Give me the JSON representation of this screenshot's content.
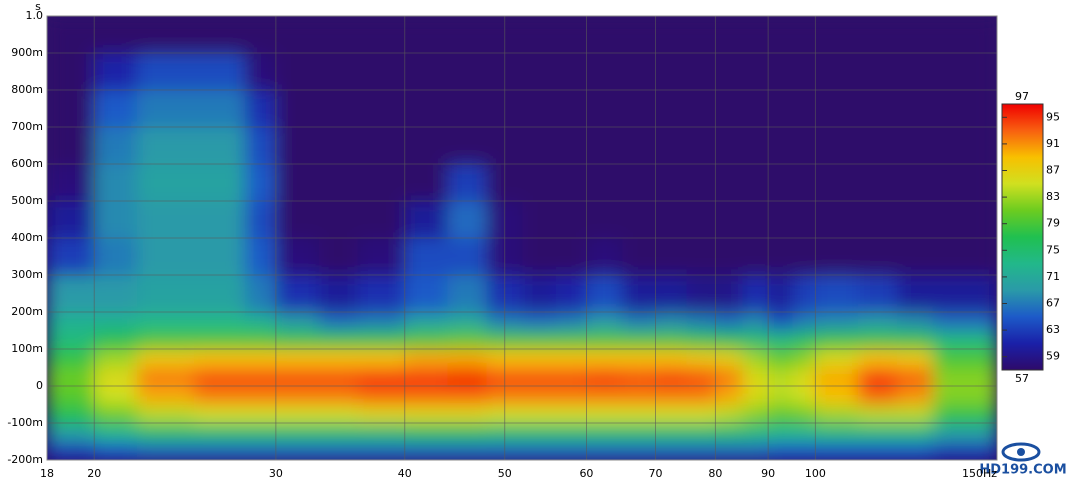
{
  "chart_data": {
    "type": "heatmap",
    "y_label": "s",
    "xlog": true,
    "xlim": [
      18,
      150
    ],
    "xticks": [
      18,
      20,
      30,
      40,
      50,
      60,
      70,
      80,
      90,
      100,
      {
        "value": 150,
        "label": "150Hz"
      }
    ],
    "ylim": [
      -0.2,
      1.0
    ],
    "yticks": [
      {
        "value": -0.2,
        "label": "-200m"
      },
      {
        "value": -0.1,
        "label": "-100m"
      },
      0,
      {
        "value": 0.1,
        "label": "100m"
      },
      {
        "value": 0.2,
        "label": "200m"
      },
      {
        "value": 0.3,
        "label": "300m"
      },
      {
        "value": 0.4,
        "label": "400m"
      },
      {
        "value": 0.5,
        "label": "500m"
      },
      {
        "value": 0.6,
        "label": "600m"
      },
      {
        "value": 0.7,
        "label": "700m"
      },
      {
        "value": 0.8,
        "label": "800m"
      },
      {
        "value": 0.9,
        "label": "900m"
      },
      {
        "value": 1.0,
        "label": "1.0"
      }
    ],
    "grid": true,
    "zlim": [
      57,
      97
    ],
    "zticks": [
      59,
      63,
      67,
      71,
      75,
      79,
      83,
      87,
      91,
      95
    ],
    "colors": [
      "#2e0a6a",
      "#1a20a8",
      "#1d5ac8",
      "#2a9aa8",
      "#22b88a",
      "#20c050",
      "#6ccc20",
      "#d0e020",
      "#f8c000",
      "#f86010",
      "#f00000"
    ],
    "xbins": [
      18,
      20,
      22,
      25,
      28,
      30,
      33,
      36,
      40,
      44,
      48,
      52,
      56,
      60,
      65,
      70,
      75,
      80,
      85,
      90,
      95,
      100,
      110,
      120,
      130,
      150
    ],
    "ybins": [
      -0.2,
      -0.15,
      -0.1,
      -0.05,
      0,
      0.05,
      0.1,
      0.15,
      0.2,
      0.3,
      0.4,
      0.5,
      0.6,
      0.7,
      0.8,
      0.9,
      1.0
    ],
    "values": [
      [
        63,
        65,
        66,
        66,
        66,
        66,
        66,
        66,
        66,
        66,
        66,
        66,
        66,
        66,
        66,
        66,
        66,
        66,
        66,
        65,
        65,
        65,
        65,
        65,
        63
      ],
      [
        70,
        73,
        75,
        75,
        75,
        75,
        75,
        75,
        76,
        76,
        75,
        75,
        75,
        75,
        75,
        75,
        75,
        75,
        74,
        73,
        73,
        74,
        74,
        74,
        70
      ],
      [
        77,
        81,
        84,
        85,
        85,
        85,
        85,
        86,
        86,
        86,
        85,
        85,
        85,
        85,
        85,
        85,
        85,
        84,
        82,
        80,
        81,
        83,
        84,
        84,
        78
      ],
      [
        80,
        85,
        90,
        92,
        92,
        92,
        92,
        93,
        93,
        93,
        92,
        92,
        92,
        92,
        92,
        92,
        92,
        90,
        86,
        84,
        85,
        89,
        93,
        91,
        82
      ],
      [
        81,
        86,
        92,
        94,
        94,
        94,
        94,
        95,
        95,
        96,
        94,
        94,
        94,
        95,
        94,
        95,
        94,
        92,
        86,
        84,
        86,
        90,
        95,
        93,
        82
      ],
      [
        78,
        83,
        88,
        89,
        89,
        89,
        89,
        89,
        90,
        90,
        89,
        89,
        89,
        89,
        89,
        89,
        88,
        87,
        83,
        80,
        82,
        86,
        89,
        88,
        79
      ],
      [
        74,
        77,
        79,
        79,
        79,
        78,
        78,
        78,
        79,
        80,
        79,
        79,
        79,
        79,
        79,
        79,
        78,
        77,
        75,
        74,
        76,
        78,
        78,
        78,
        74
      ],
      [
        72,
        72,
        73,
        73,
        72,
        69,
        66,
        67,
        70,
        71,
        67,
        66,
        67,
        69,
        67,
        68,
        67,
        66,
        68,
        64,
        67,
        68,
        69,
        68,
        66
      ],
      [
        69,
        69,
        70,
        70,
        67,
        62,
        60,
        62,
        65,
        67,
        62,
        60,
        61,
        64,
        60,
        60,
        59,
        59,
        62,
        60,
        63,
        64,
        63,
        60,
        60
      ],
      [
        63,
        67,
        69,
        69,
        65,
        58,
        57,
        58,
        64,
        64,
        58,
        57,
        57,
        58,
        57,
        57,
        57,
        57,
        57,
        57,
        57,
        57,
        57,
        57,
        57
      ],
      [
        60,
        68,
        69,
        69,
        64,
        57,
        57,
        57,
        60,
        66,
        58,
        57,
        57,
        57,
        57,
        57,
        57,
        57,
        57,
        57,
        57,
        57,
        57,
        57,
        57
      ],
      [
        58,
        68,
        70,
        70,
        65,
        57,
        57,
        57,
        57,
        63,
        57,
        57,
        57,
        57,
        57,
        57,
        57,
        57,
        57,
        57,
        57,
        57,
        57,
        57,
        57
      ],
      [
        57,
        67,
        69,
        69,
        64,
        57,
        57,
        57,
        57,
        57,
        57,
        57,
        57,
        57,
        57,
        57,
        57,
        57,
        57,
        57,
        57,
        57,
        57,
        57,
        57
      ],
      [
        57,
        65,
        67,
        67,
        62,
        57,
        57,
        57,
        57,
        57,
        57,
        57,
        57,
        57,
        57,
        57,
        57,
        57,
        57,
        57,
        57,
        57,
        57,
        57,
        57
      ],
      [
        57,
        61,
        64,
        64,
        58,
        57,
        57,
        57,
        57,
        57,
        57,
        57,
        57,
        57,
        57,
        57,
        57,
        57,
        57,
        57,
        57,
        57,
        57,
        57,
        57
      ],
      [
        57,
        57,
        57,
        57,
        57,
        57,
        57,
        57,
        57,
        57,
        57,
        57,
        57,
        57,
        57,
        57,
        57,
        57,
        57,
        57,
        57,
        57,
        57,
        57,
        57
      ]
    ],
    "watermark": "HD199.COM"
  }
}
